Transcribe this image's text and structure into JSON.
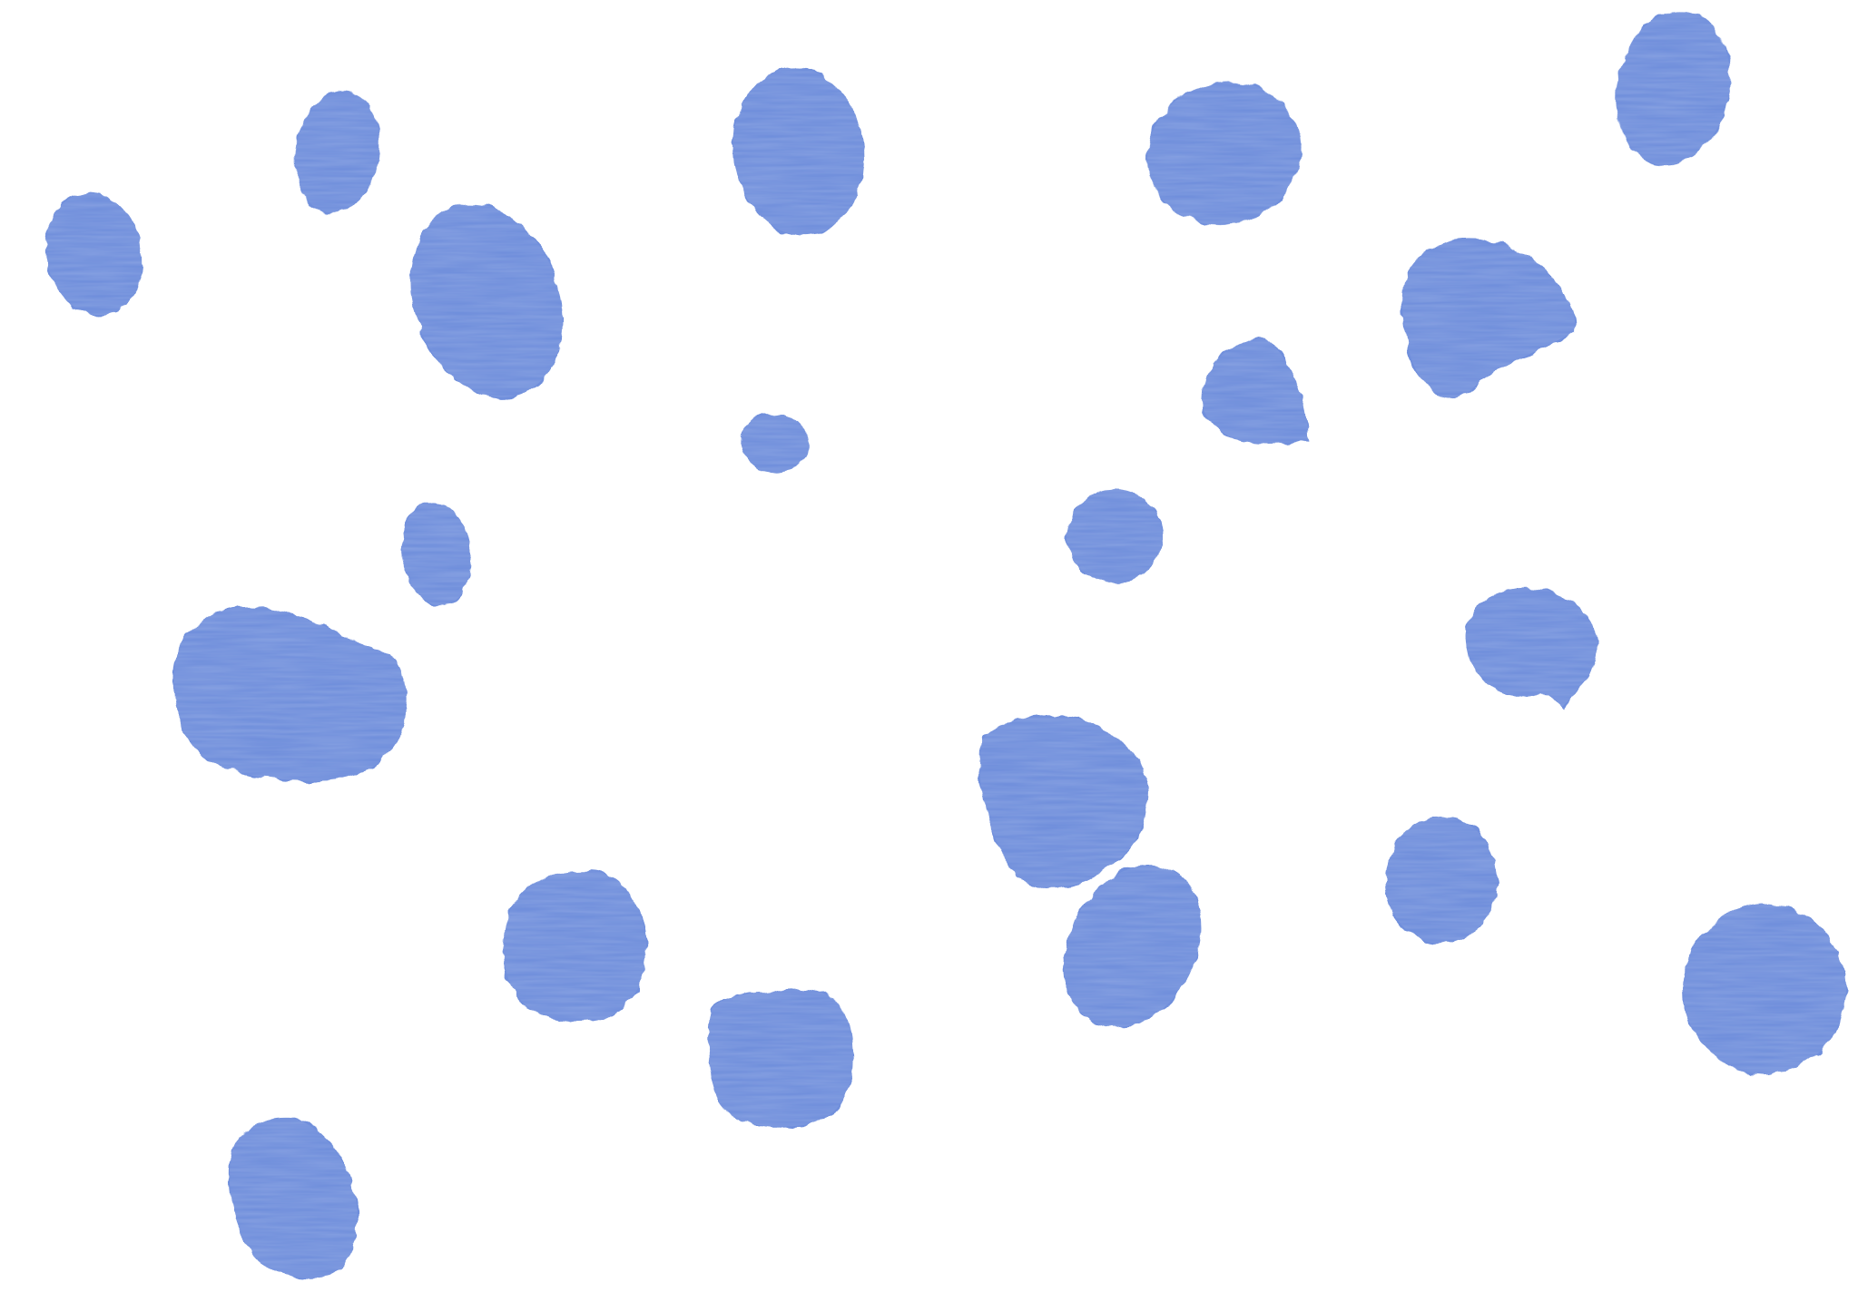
{
  "colors": {
    "background": "#ffffff",
    "paint": "#6f8fdc",
    "paint_light": "#8aa6e6",
    "paint_dark": "#5b7ccf"
  },
  "scene": {
    "subject": "blue-paint-dots",
    "dot_count": 22
  }
}
